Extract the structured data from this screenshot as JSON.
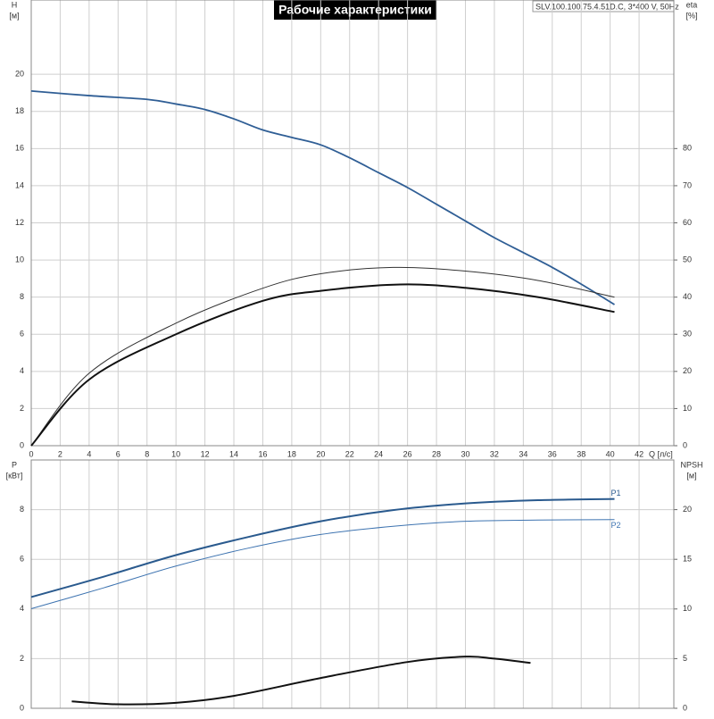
{
  "chart_data": [
    {
      "type": "line",
      "title": "Рабочие характеристики",
      "subtitle": "SLV.100.100.75.4.51D.C, 3*400 V, 50Hz",
      "x_label": "Q [л/с]",
      "y_label": "H",
      "y_unit": "[м]",
      "y2_label": "eta",
      "y2_unit": "[%]",
      "xlim": [
        0,
        44.4
      ],
      "xticks": [
        0,
        2,
        4,
        6,
        8,
        10,
        12,
        14,
        16,
        18,
        20,
        22,
        24,
        26,
        28,
        30,
        32,
        34,
        36,
        38,
        40,
        42
      ],
      "ylim": [
        0,
        24
      ],
      "yticks": [
        0,
        2,
        4,
        6,
        8,
        10,
        12,
        14,
        16,
        18,
        20
      ],
      "y2lim": [
        0,
        120
      ],
      "y2ticks": [
        0,
        10,
        20,
        30,
        40,
        50,
        60,
        70,
        80
      ],
      "grid": true,
      "series": [
        {
          "color": "#2f5e95",
          "width": 1.8,
          "x": [
            0,
            4,
            8,
            10,
            12,
            14,
            16,
            18,
            20,
            22,
            24,
            26,
            28,
            30,
            32,
            34,
            36,
            38,
            40.3
          ],
          "values": [
            19.1,
            18.85,
            18.65,
            18.4,
            18.1,
            17.6,
            17.0,
            16.6,
            16.2,
            15.5,
            14.7,
            13.9,
            13.0,
            12.1,
            11.2,
            10.4,
            9.6,
            8.7,
            7.6
          ]
        },
        {
          "color": "#333333",
          "width": 1,
          "axis": "y2",
          "x": [
            0,
            4,
            10,
            16,
            20,
            25,
            30,
            35,
            40.3
          ],
          "values": [
            0,
            19.5,
            33,
            42.4,
            46.3,
            48,
            47,
            44.5,
            40
          ]
        },
        {
          "color": "#111111",
          "width": 2,
          "axis": "y2",
          "x": [
            0,
            4,
            10,
            16,
            20,
            25.5,
            30,
            35,
            40.3
          ],
          "values": [
            0,
            17.8,
            30,
            39,
            41.7,
            43.4,
            42.5,
            40,
            36
          ]
        }
      ]
    },
    {
      "type": "line",
      "y_label": "P",
      "y_unit": "[кВт]",
      "y2_label": "NPSH",
      "y2_unit": "[м]",
      "xlim": [
        0,
        44.4
      ],
      "xticks": [
        0,
        2,
        4,
        6,
        8,
        10,
        12,
        14,
        16,
        18,
        20,
        22,
        24,
        26,
        28,
        30,
        32,
        34,
        36,
        38,
        40,
        42
      ],
      "ylim": [
        0,
        10
      ],
      "yticks": [
        0,
        2,
        4,
        6,
        8
      ],
      "y2lim": [
        0,
        25
      ],
      "y2ticks": [
        0,
        5,
        10,
        15,
        20
      ],
      "grid": true,
      "series": [
        {
          "name": "P1",
          "color": "#2a5a8e",
          "width": 2,
          "x": [
            0,
            5,
            10,
            15,
            20,
            25,
            30,
            35,
            40.3
          ],
          "values": [
            4.48,
            5.3,
            6.17,
            6.9,
            7.53,
            7.98,
            8.25,
            8.38,
            8.43
          ]
        },
        {
          "name": "P2",
          "color": "#3d73b0",
          "width": 1,
          "x": [
            0,
            5,
            10,
            15,
            20,
            25,
            30,
            35,
            40.3
          ],
          "values": [
            4.01,
            4.85,
            5.73,
            6.45,
            7.0,
            7.33,
            7.53,
            7.58,
            7.6
          ]
        },
        {
          "color": "#111111",
          "width": 2,
          "axis": "y2",
          "x": [
            2.8,
            6,
            10,
            14,
            20,
            26,
            30,
            32,
            34.5
          ],
          "values": [
            0.7,
            0.4,
            0.55,
            1.25,
            3.05,
            4.66,
            5.2,
            5.0,
            4.57
          ]
        }
      ]
    }
  ]
}
